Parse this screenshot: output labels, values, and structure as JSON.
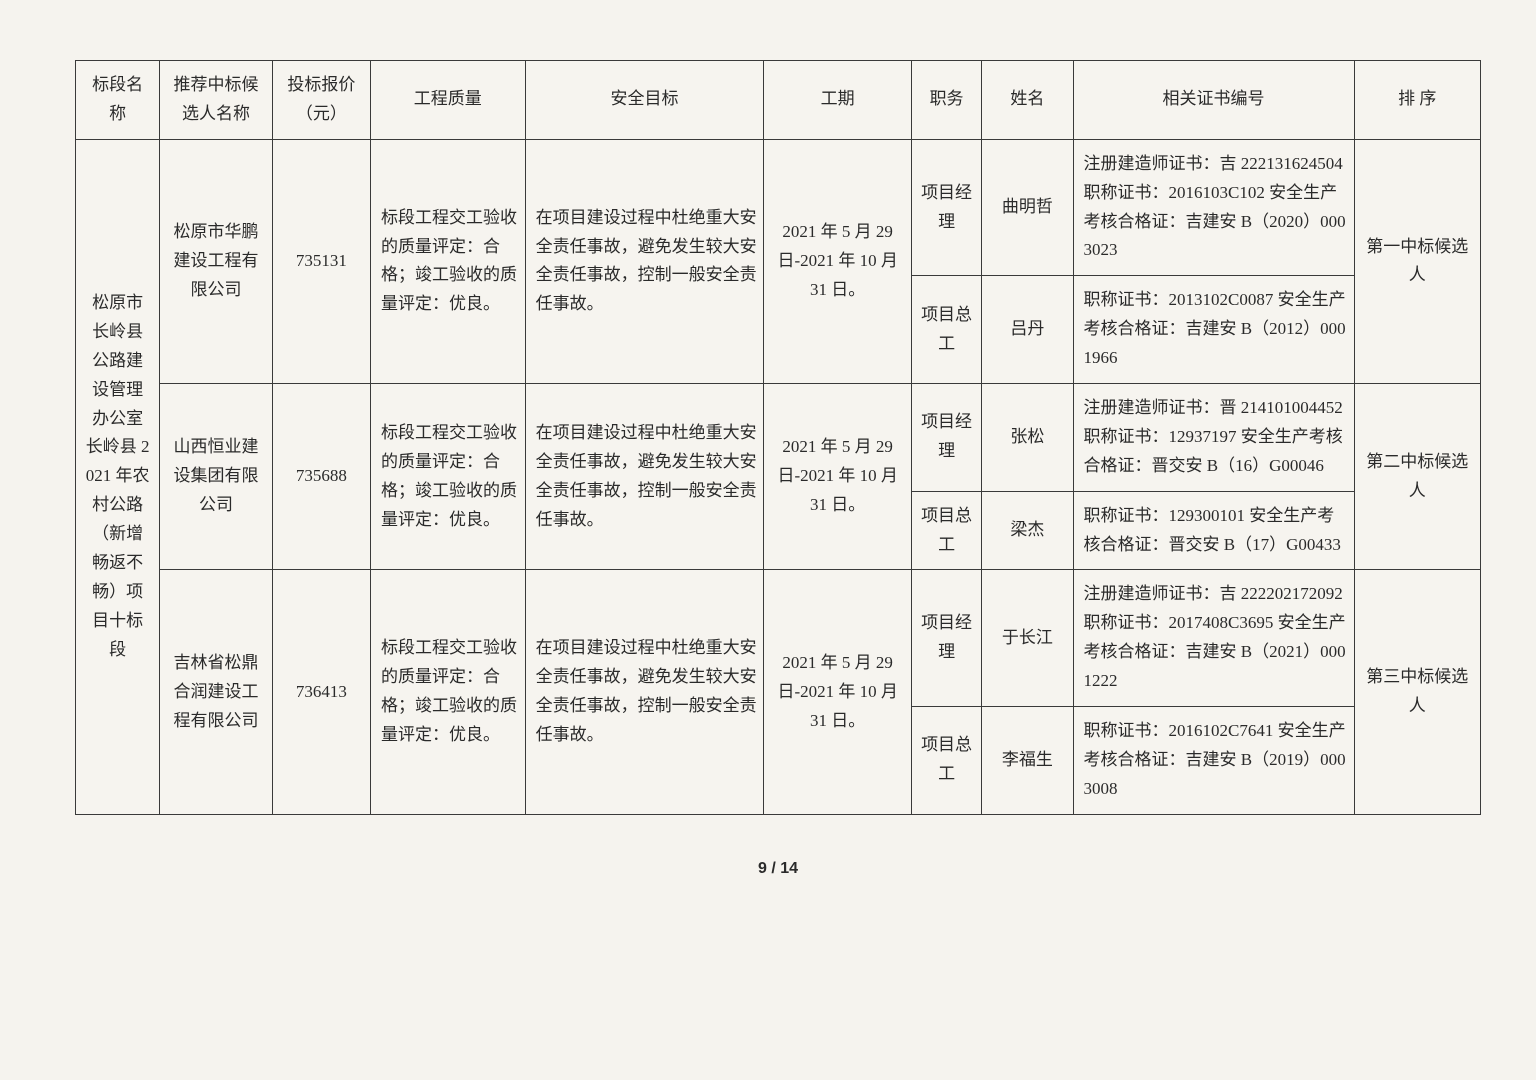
{
  "headers": {
    "section": "标段名称",
    "candidate": "推荐中标候选人名称",
    "bid": "投标报价（元）",
    "quality": "工程质量",
    "safety": "安全目标",
    "period": "工期",
    "role": "职务",
    "person": "姓名",
    "cert": "相关证书编号",
    "rank": "排 序"
  },
  "section": "松原市长岭县公路建设管理办公室长岭县 2021 年农村公路（新增畅返不畅）项目十标段",
  "bidders": [
    {
      "name": "松原市华鹏建设工程有限公司",
      "bid": "735131",
      "quality": "标段工程交工验收的质量评定：合格；竣工验收的质量评定：优良。",
      "safety": "在项目建设过程中杜绝重大安全责任事故，避免发生较大安全责任事故，控制一般安全责任事故。",
      "period": "2021 年 5 月 29 日-2021 年 10 月 31 日。",
      "people": [
        {
          "role": "项目经理",
          "name": "曲明哲",
          "cert": "注册建造师证书：吉 222131624504\n职称证书：2016103C102\n安全生产考核合格证：吉建安 B（2020）0003023"
        },
        {
          "role": "项目总工",
          "name": "吕丹",
          "cert": "职称证书：2013102C0087\n安全生产考核合格证：吉建安 B（2012）0001966"
        }
      ],
      "rank": "第一中标候选人"
    },
    {
      "name": "山西恒业建设集团有限公司",
      "bid": "735688",
      "quality": "标段工程交工验收的质量评定：合格；竣工验收的质量评定：优良。",
      "safety": "在项目建设过程中杜绝重大安全责任事故，避免发生较大安全责任事故，控制一般安全责任事故。",
      "period": "2021 年 5 月 29 日-2021 年 10 月 31 日。",
      "people": [
        {
          "role": "项目经理",
          "name": "张松",
          "cert": "注册建造师证书：晋 214101004452\n职称证书：12937197\n安全生产考核合格证：晋交安 B（16）G00046"
        },
        {
          "role": "项目总工",
          "name": "梁杰",
          "cert": "职称证书：129300101\n安全生产考核合格证：晋交安 B（17）G00433"
        }
      ],
      "rank": "第二中标候选人"
    },
    {
      "name": "吉林省松鼎合润建设工程有限公司",
      "bid": "736413",
      "quality": "标段工程交工验收的质量评定：合格；竣工验收的质量评定：优良。",
      "safety": "在项目建设过程中杜绝重大安全责任事故，避免发生较大安全责任事故，控制一般安全责任事故。",
      "period": "2021 年 5 月 29 日-2021 年 10 月 31 日。",
      "people": [
        {
          "role": "项目经理",
          "name": "于长江",
          "cert": "注册建造师证书：吉 222202172092\n职称证书：2017408C3695\n安全生产考核合格证：吉建安 B（2021）0001222"
        },
        {
          "role": "项目总工",
          "name": "李福生",
          "cert": "职称证书：2016102C7641\n安全生产考核合格证：吉建安 B（2019）0003008"
        }
      ],
      "rank": "第三中标候选人"
    }
  ],
  "footer": "9 / 14",
  "colwidths": [
    "6%",
    "8%",
    "7%",
    "11%",
    "17%",
    "10.5%",
    "5%",
    "6.5%",
    "20%",
    "9%"
  ]
}
